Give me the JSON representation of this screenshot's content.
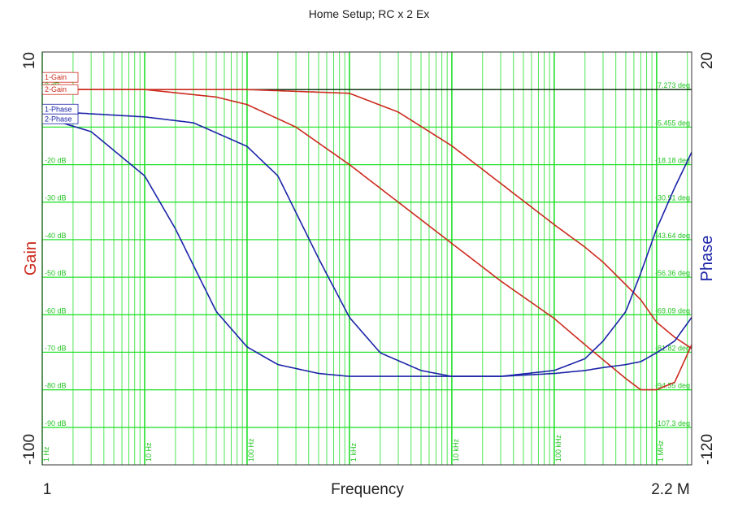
{
  "chart_data": {
    "type": "line",
    "title": "Home Setup; RC x 2 Ex",
    "xlabel": "Frequency",
    "x_scale": "log",
    "xlim": [
      1,
      2200000
    ],
    "x_end_labels": {
      "left": "1",
      "right": "2.2 M"
    },
    "x_grid_labels": [
      {
        "f": 1,
        "text": "1 Hz"
      },
      {
        "f": 10,
        "text": "10 Hz"
      },
      {
        "f": 100,
        "text": "100 Hz"
      },
      {
        "f": 1000,
        "text": "1 kHz"
      },
      {
        "f": 10000,
        "text": "10 kHz"
      },
      {
        "f": 100000,
        "text": "100 kHz"
      },
      {
        "f": 1000000,
        "text": "1 MHz"
      }
    ],
    "y_left": {
      "label": "Gain",
      "range": [
        -100,
        10
      ],
      "end_labels": {
        "top": "10",
        "bottom": "-100"
      },
      "grid_labels": [
        {
          "v": 0,
          "text": "0 dB"
        },
        {
          "v": -20,
          "text": "-20 dB"
        },
        {
          "v": -30,
          "text": "-30 dB"
        },
        {
          "v": -40,
          "text": "-40 dB"
        },
        {
          "v": -50,
          "text": "-50 dB"
        },
        {
          "v": -60,
          "text": "-60 dB"
        },
        {
          "v": -70,
          "text": "-70 dB"
        },
        {
          "v": -80,
          "text": "-80 dB"
        },
        {
          "v": -90,
          "text": "-90 dB"
        }
      ],
      "color": "#cc2a1e"
    },
    "y_right": {
      "label": "Phase",
      "range": [
        -120,
        20
      ],
      "end_labels": {
        "top": "20",
        "bottom": "-120"
      },
      "grid_labels": [
        {
          "v": 7.273,
          "text": "7.273 deg"
        },
        {
          "v": -5.455,
          "text": "-5.455 deg"
        },
        {
          "v": -18.18,
          "text": "-18.18 deg"
        },
        {
          "v": -30.91,
          "text": "-30.91 deg"
        },
        {
          "v": -43.64,
          "text": "-43.64 deg"
        },
        {
          "v": -56.36,
          "text": "-56.36 deg"
        },
        {
          "v": -69.09,
          "text": "-69.09 deg"
        },
        {
          "v": -81.82,
          "text": "-81.82 deg"
        },
        {
          "v": -94.55,
          "text": "-94.55 deg"
        },
        {
          "v": -107.3,
          "text": "-107.3 deg"
        }
      ],
      "color": "#1b24a8"
    },
    "grid": true,
    "grid_color": "#23e02a",
    "reference_line": {
      "axis": "left",
      "value": 0
    },
    "legend": {
      "placement": "top-left",
      "entries": [
        "1-Gain",
        "2-Gain",
        "1-Phase",
        "2-Phase"
      ]
    },
    "series": [
      {
        "name": "1-Gain",
        "axis": "left",
        "color": "#cc2a1e",
        "x": [
          1,
          100,
          1000,
          3000,
          10000,
          30000,
          100000,
          200000,
          300000,
          500000,
          700000,
          1000000,
          1500000,
          2200000
        ],
        "y": [
          0,
          0,
          -1,
          -6,
          -15,
          -25,
          -36,
          -42,
          -46,
          -52,
          -56,
          -62,
          -66,
          -69
        ]
      },
      {
        "name": "2-Gain",
        "axis": "left",
        "color": "#cc2a1e",
        "x": [
          1,
          10,
          50,
          100,
          300,
          1000,
          3000,
          10000,
          30000,
          100000,
          200000,
          300000,
          500000,
          700000,
          1000000,
          1500000,
          2200000
        ],
        "y": [
          0,
          0,
          -2,
          -4,
          -10,
          -20,
          -30,
          -41,
          -51,
          -61,
          -68,
          -72,
          -77,
          -80,
          -80,
          -78,
          -68
        ]
      },
      {
        "name": "1-Phase",
        "axis": "right",
        "color": "#1b24a8",
        "x": [
          1,
          10,
          30,
          100,
          200,
          500,
          1000,
          2000,
          5000,
          10000,
          30000,
          100000,
          200000,
          300000,
          500000,
          700000,
          1000000,
          1500000,
          2200000
        ],
        "y": [
          0,
          -2,
          -4,
          -12,
          -22,
          -50,
          -70,
          -82,
          -88,
          -90,
          -90,
          -89,
          -88,
          -87,
          -86,
          -85,
          -82,
          -78,
          -70
        ]
      },
      {
        "name": "2-Phase",
        "axis": "right",
        "color": "#1b24a8",
        "x": [
          1,
          3,
          10,
          20,
          50,
          100,
          200,
          500,
          1000,
          3000,
          10000,
          30000,
          100000,
          200000,
          300000,
          500000,
          700000,
          1000000,
          1500000,
          2200000
        ],
        "y": [
          -2,
          -7,
          -22,
          -40,
          -68,
          -80,
          -86,
          -89,
          -90,
          -90,
          -90,
          -90,
          -88,
          -84,
          -78,
          -68,
          -55,
          -40,
          -26,
          -14
        ]
      }
    ]
  }
}
